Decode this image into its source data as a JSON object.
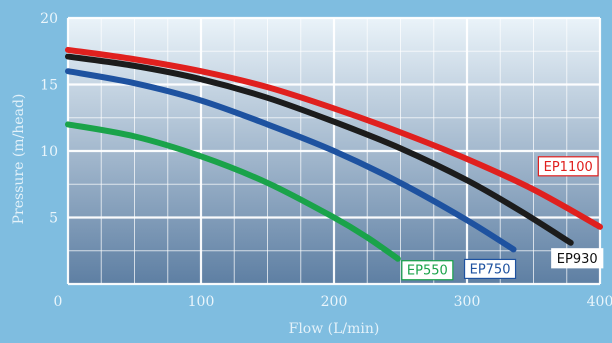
{
  "chart_data": {
    "type": "line",
    "xlabel": "Flow (L/min)",
    "ylabel": "Pressure (m/head)",
    "xlim": [
      0,
      400
    ],
    "ylim": [
      0,
      20
    ],
    "xticks": [
      0,
      100,
      200,
      300,
      400
    ],
    "yticks": [
      5,
      10,
      15,
      20
    ],
    "grid": true,
    "colors": {
      "background": "#7fbde0",
      "plot_top": "#eaf3f9",
      "plot_bottom": "#5e7fa3",
      "grid": "#ffffff"
    },
    "series": [
      {
        "name": "EP1100",
        "color": "#e0201e",
        "x": [
          0,
          50,
          100,
          150,
          200,
          250,
          300,
          350,
          400
        ],
        "y": [
          17.6,
          16.9,
          16.0,
          14.8,
          13.2,
          11.4,
          9.4,
          7.1,
          4.3
        ]
      },
      {
        "name": "EP930",
        "color": "#1c1c1c",
        "x": [
          0,
          50,
          100,
          150,
          200,
          250,
          300,
          340,
          378
        ],
        "y": [
          17.1,
          16.4,
          15.4,
          14.0,
          12.2,
          10.2,
          7.8,
          5.5,
          3.1
        ]
      },
      {
        "name": "EP750",
        "color": "#1e52a0",
        "x": [
          0,
          50,
          100,
          150,
          200,
          250,
          300,
          335
        ],
        "y": [
          16.0,
          15.1,
          13.8,
          12.0,
          10.0,
          7.6,
          4.8,
          2.6
        ]
      },
      {
        "name": "EP550",
        "color": "#1aa34a",
        "x": [
          0,
          50,
          100,
          150,
          200,
          225,
          248
        ],
        "y": [
          12.0,
          11.1,
          9.6,
          7.6,
          5.0,
          3.5,
          1.9
        ]
      }
    ]
  }
}
